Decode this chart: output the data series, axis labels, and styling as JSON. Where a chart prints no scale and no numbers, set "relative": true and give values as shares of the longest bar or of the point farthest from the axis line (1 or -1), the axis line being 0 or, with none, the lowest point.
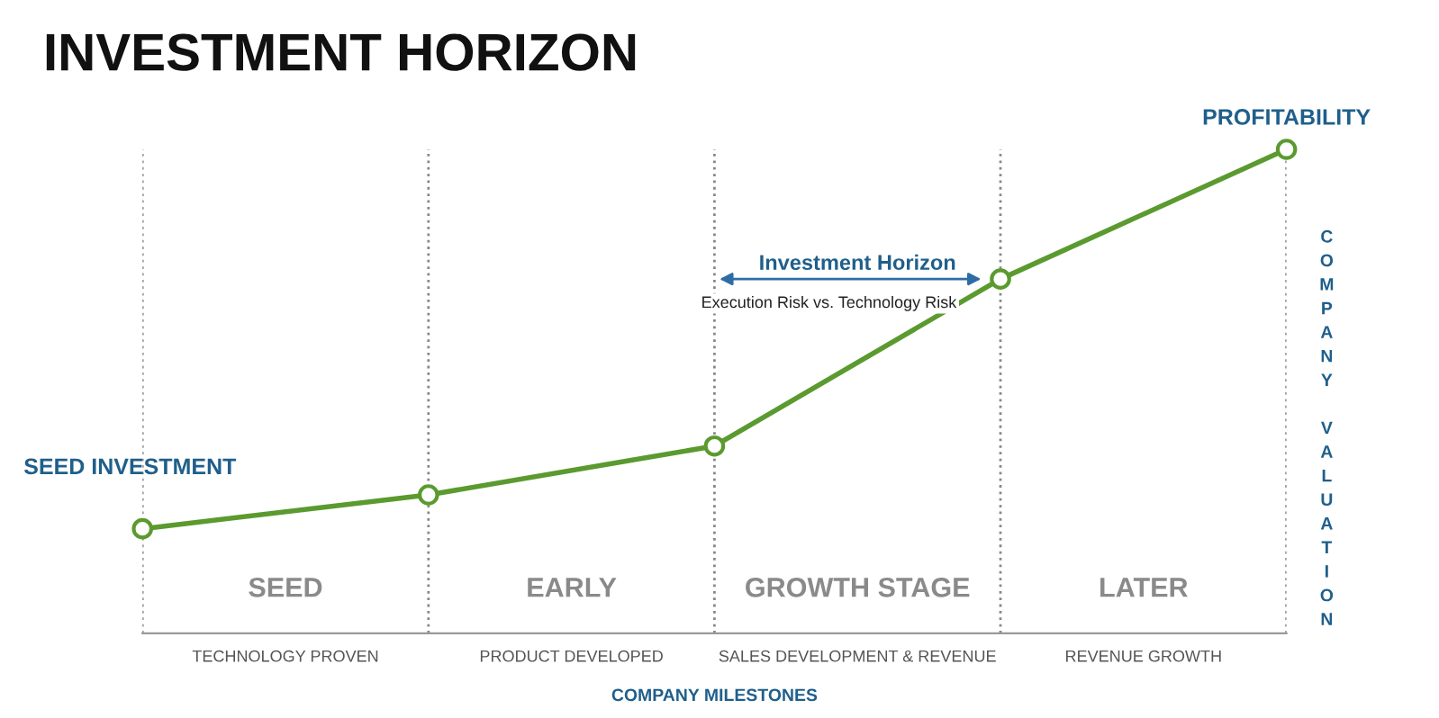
{
  "chart_data": {
    "type": "line",
    "title": "INVESTMENT HORIZON",
    "xlabel": "COMPANY MILESTONES",
    "ylabel": "COMPANY VALUATION",
    "categories": [
      null,
      null,
      null,
      null,
      null
    ],
    "relative": true,
    "series": [
      {
        "color": "#5b9a2f",
        "values": [
          0.216,
          0.286,
          0.387,
          0.732,
          1
        ]
      }
    ],
    "marker": "circle",
    "line_style": "solid",
    "grid": "x",
    "tick_labels": false,
    "annotations": [
      {
        "text": "SEED INVESTMENT",
        "y": 0.216
      },
      {
        "text": "PROFITABILITY",
        "y": 1
      },
      "Investment Horizon",
      "Execution Risk vs. Technology Risk",
      "SEED",
      "EARLY",
      "GROWTH STAGE",
      "LATER",
      "TECHNOLOGY PROVEN",
      "PRODUCT DEVELOPED",
      "SALES DEVELOPMENT & REVENUE",
      "REVENUE GROWTH"
    ]
  }
}
